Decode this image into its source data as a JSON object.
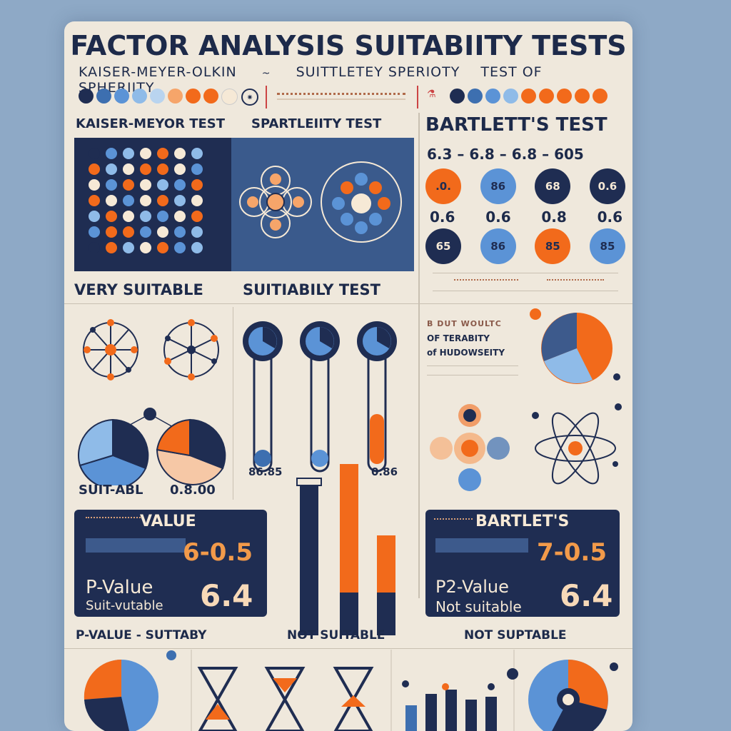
{
  "title": "FACTOR ANALYSIS SUITABIITY TESTS",
  "subtitle": {
    "left": "KAISER-MEYER-OLKIN",
    "middle": "SUITTLETEY SPERIOTY",
    "right": "TEST OF SPHERIITY"
  },
  "row_labels": {
    "kmo": "KAISER-MEYOR TEST",
    "sphericity": "SPARTLEIITY TEST",
    "bartlett": "BARTLETT'S TEST",
    "bartlett_range": "6.3 – 6.8 – 6.8 – 605"
  },
  "bartlett_circles": {
    "top": [
      ".0.",
      "86",
      "68",
      "0.6"
    ],
    "middle": [
      "0.6",
      "0.6",
      "0.8",
      "0.6"
    ],
    "bottom": [
      "65",
      "86",
      "85",
      "85"
    ]
  },
  "mid_labels": {
    "very_suitable": "VERY SUITABLE",
    "suitability_test": "SUITIABILY TEST",
    "side_lines": [
      "OF TERABITY",
      "of HUDOWSEITY"
    ],
    "suitable": "SUIT-ABL",
    "suitable_value": "0.8.00",
    "bar_value_left": "86.85",
    "bar_value_right": "0.86"
  },
  "left_result": {
    "heading": "VALUE",
    "range": "6-0.5",
    "p_value_label": "P-Value",
    "status": "Suit-vutable",
    "number": "6.4"
  },
  "right_result": {
    "heading": "BARTLET'S",
    "range": "7-0.5",
    "p_value_label": "P2-Value",
    "status": "Not suitable",
    "number": "6.4"
  },
  "bottom_labels": {
    "left": "P-VALUE - SUTTABY",
    "middle": "NOT SUITABLE",
    "right": "NOT SUPTABLE"
  },
  "colors": {
    "navy": "#1f2d52",
    "orange": "#f26a1b",
    "blue": "#5b93d6",
    "light_blue": "#8fbbe8",
    "cream": "#f6e9d6",
    "background": "#8ea9c6"
  }
}
